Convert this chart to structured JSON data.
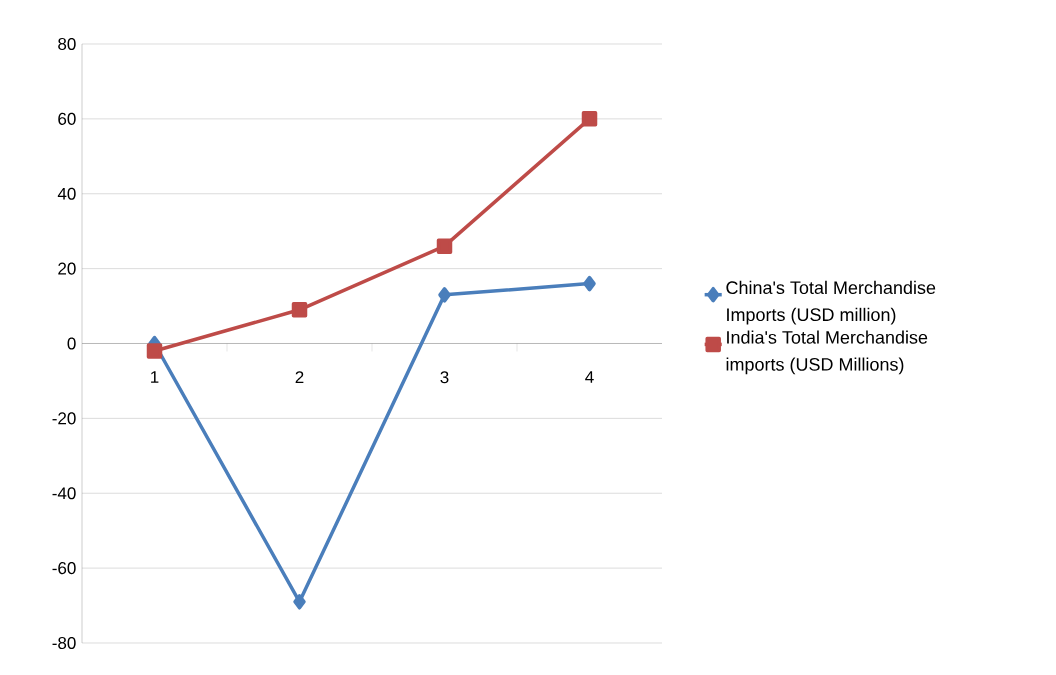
{
  "chart_data": {
    "type": "line",
    "categories": [
      "1",
      "2",
      "3",
      "4"
    ],
    "series": [
      {
        "name": "China's Total Merchandise Imports (USD million)",
        "color": "#4a7ebb",
        "marker": "diamond",
        "values": [
          0,
          -69,
          13,
          16
        ]
      },
      {
        "name": "India's Total Merchandise imports (USD Millions)",
        "color": "#be4b48",
        "marker": "square",
        "values": [
          -2,
          9,
          26,
          60
        ]
      }
    ],
    "ylim": [
      -80,
      80
    ],
    "yticks": [
      -80,
      -60,
      -40,
      -20,
      0,
      20,
      40,
      60,
      80
    ],
    "grid": "y",
    "legend": "right",
    "line_style": "solid"
  }
}
